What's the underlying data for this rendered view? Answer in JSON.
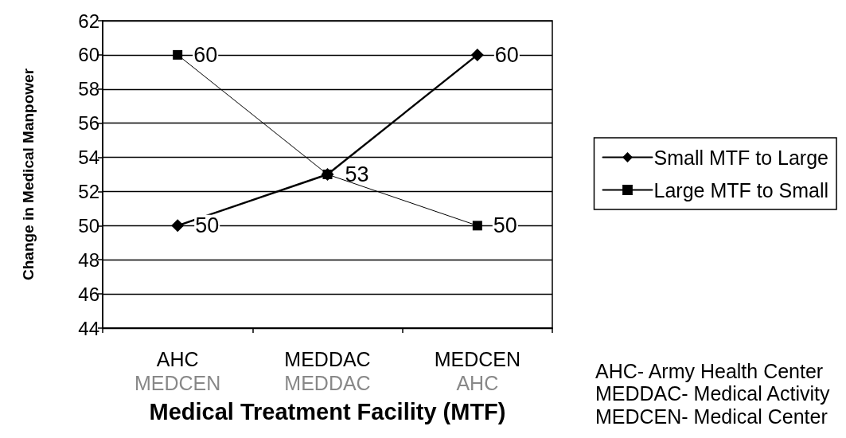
{
  "chart_data": {
    "type": "line",
    "xlabel": "Medical Treatment Facility (MTF)",
    "ylabel": "Change in Medical Manpower",
    "categories": [
      "AHC\nMEDCEN",
      "MEDDAC\nMEDDAC",
      "MEDCEN\nAHC"
    ],
    "series": [
      {
        "name": "Small MTF to Large",
        "color": "#000000",
        "marker": "diamond",
        "values": [
          50,
          53,
          60
        ],
        "value_labels": [
          "50",
          "53",
          "60"
        ]
      },
      {
        "name": "Large MTF to Small",
        "color": "#000000",
        "marker": "square",
        "values": [
          60,
          53,
          50
        ],
        "value_labels": [
          "60",
          null,
          "50"
        ]
      }
    ],
    "ylim": [
      44,
      62
    ],
    "yticks": [
      44,
      46,
      48,
      50,
      52,
      54,
      56,
      58,
      60,
      62
    ],
    "grid": "y",
    "legend": "right",
    "line_style": "solid",
    "annotations": [
      "AHC- Army Health Center",
      "MEDDAC- Medical Activity",
      "MEDCEN- Medical Center"
    ]
  }
}
